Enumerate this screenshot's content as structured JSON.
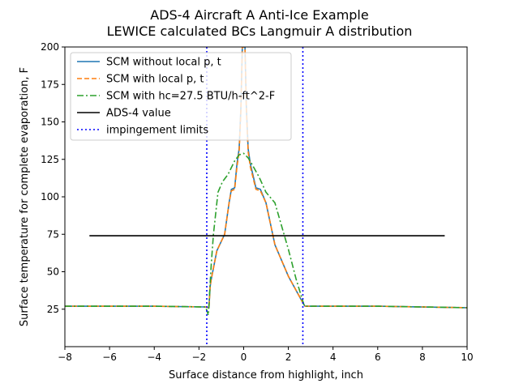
{
  "chart_data": {
    "type": "line",
    "title": [
      "ADS-4 Aircraft A Anti-Ice Example",
      "LEWICE calculated BCs Langmuir A distribution"
    ],
    "xlabel": "Surface distance from highlight, inch",
    "ylabel": "Surface temperature for complete evaporation, F",
    "xlim": [
      -8,
      10
    ],
    "ylim": [
      0,
      200
    ],
    "xticks": [
      -8,
      -6,
      -4,
      -2,
      0,
      2,
      4,
      6,
      8,
      10
    ],
    "yticks": [
      25,
      50,
      75,
      100,
      125,
      150,
      175,
      200
    ],
    "xtick_labels": [
      "−8",
      "−6",
      "−4",
      "−2",
      "0",
      "2",
      "4",
      "6",
      "8",
      "10"
    ],
    "ytick_labels": [
      "25",
      "50",
      "75",
      "100",
      "125",
      "150",
      "175",
      "200"
    ],
    "grid": false,
    "legend_position": "upper-left",
    "series": [
      {
        "name": "SCM without local p, t",
        "color": "#1f77b4",
        "dash": "solid",
        "x": [
          -8,
          -4,
          -1.7,
          -1.55,
          -1.5,
          -1.45,
          -1.2,
          -0.85,
          -0.65,
          -0.55,
          -0.4,
          -0.3,
          -0.2,
          -0.12,
          -0.06,
          0,
          0.06,
          0.12,
          0.2,
          0.3,
          0.55,
          0.75,
          1.0,
          1.4,
          2.0,
          2.7,
          2.75,
          6,
          10
        ],
        "y": [
          27,
          27,
          26.5,
          26,
          40,
          45,
          64,
          75,
          96,
          105,
          106,
          122,
          132,
          160,
          200,
          200,
          200,
          160,
          132,
          122,
          106,
          105,
          96,
          68,
          47,
          28,
          27,
          27,
          26
        ]
      },
      {
        "name": "SCM with local p, t",
        "color": "#ff7f0e",
        "dash": "dashed",
        "x": [
          -8,
          -4,
          -1.7,
          -1.55,
          -1.5,
          -1.45,
          -1.2,
          -0.85,
          -0.65,
          -0.55,
          -0.4,
          -0.3,
          -0.2,
          -0.12,
          -0.06,
          0,
          0.06,
          0.12,
          0.2,
          0.3,
          0.55,
          0.75,
          1.0,
          1.4,
          2.0,
          2.7,
          2.75,
          6,
          10
        ],
        "y": [
          27,
          27,
          26.5,
          26,
          40,
          45,
          64,
          75,
          96,
          104,
          105,
          120,
          130,
          158,
          200,
          200,
          200,
          158,
          130,
          120,
          105,
          104,
          96,
          68,
          47,
          28,
          27,
          27,
          26
        ]
      },
      {
        "name": "SCM with hc=27.5 BTU/h-ft^2-F",
        "color": "#2ca02c",
        "dash": "dashdot",
        "x": [
          -8,
          -4,
          -1.7,
          -1.58,
          -1.45,
          -1.35,
          -1.15,
          -0.95,
          -0.7,
          -0.4,
          -0.2,
          0,
          0.2,
          0.4,
          0.7,
          1.0,
          1.4,
          2.0,
          2.35,
          2.7,
          2.75,
          6,
          10
        ],
        "y": [
          27,
          27,
          26.5,
          21,
          55,
          75,
          103,
          110,
          115,
          124,
          128,
          129,
          126,
          121,
          113,
          103,
          96,
          65,
          45,
          28,
          27,
          27,
          26
        ]
      },
      {
        "name": "ADS-4 value",
        "color": "#000000",
        "dash": "solid",
        "x": [
          -6.9,
          9.0
        ],
        "y": [
          74,
          74
        ]
      },
      {
        "name": "impingement limits",
        "color": "#0000ff",
        "dash": "dotted",
        "vlines": [
          -1.65,
          2.65
        ]
      }
    ]
  }
}
